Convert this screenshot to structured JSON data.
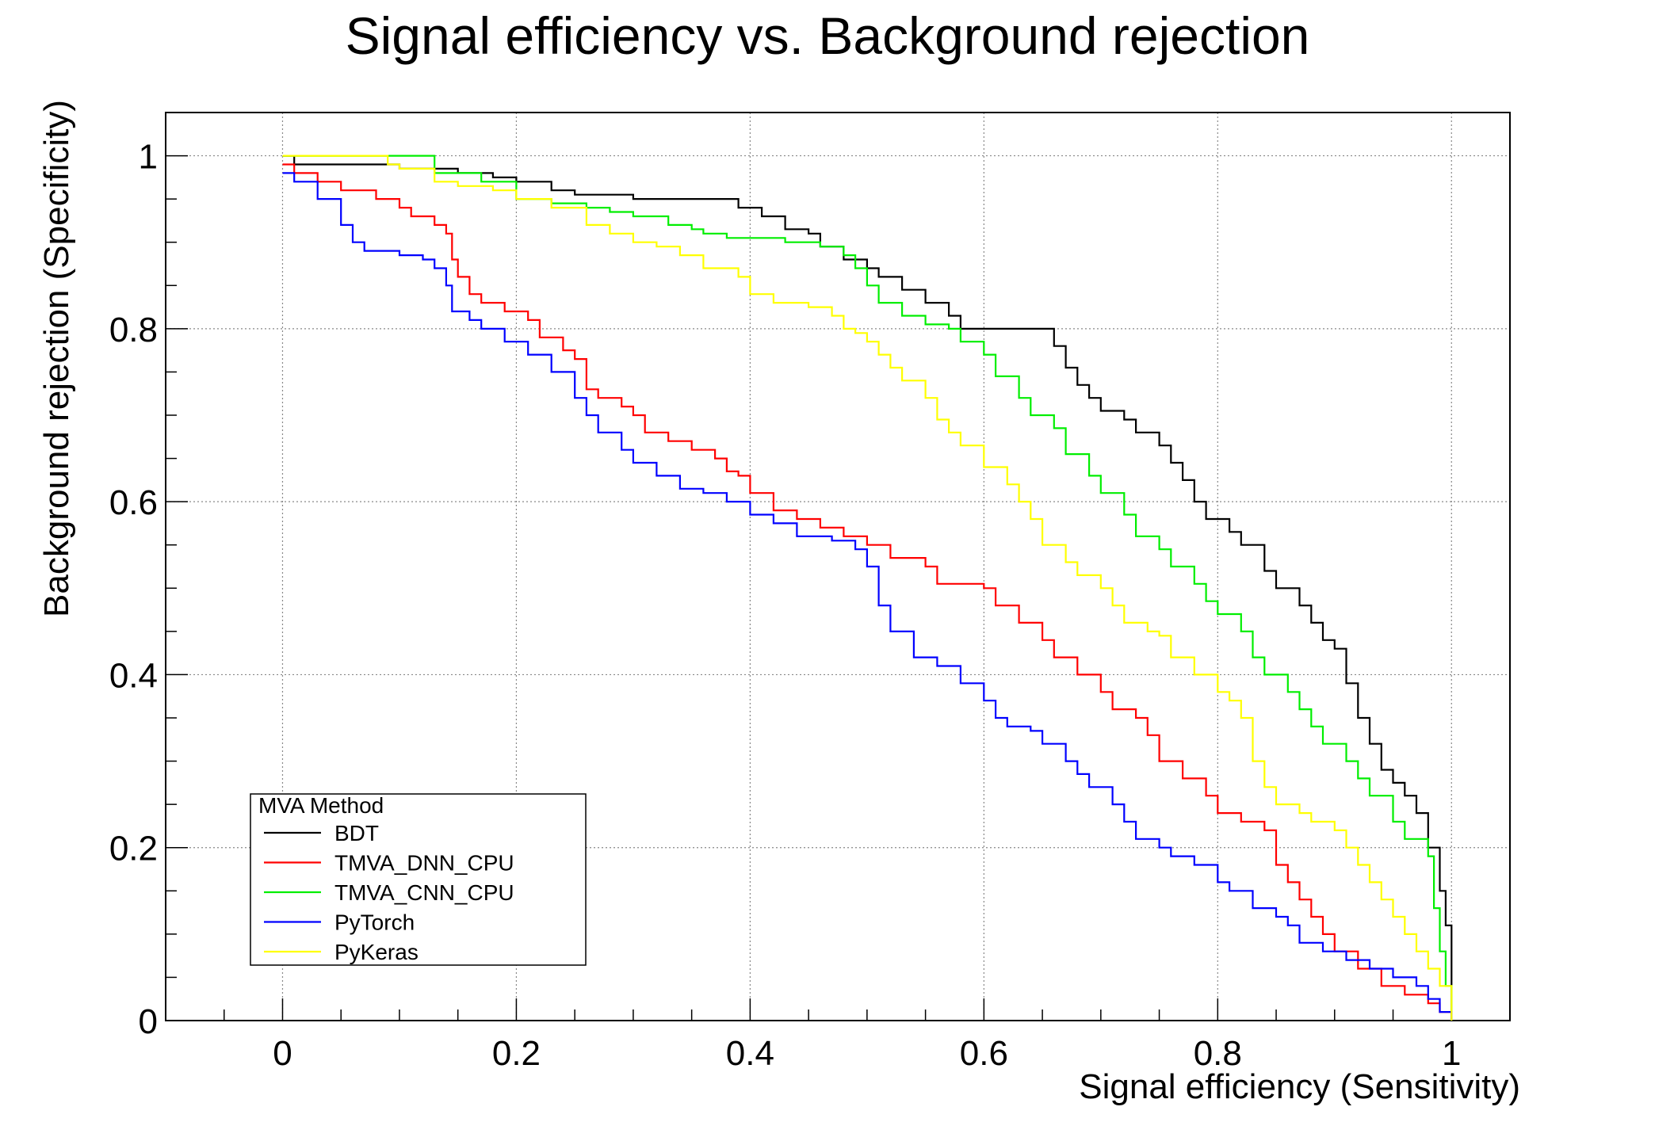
{
  "chart_data": {
    "type": "line",
    "title": "Signal efficiency vs. Background rejection",
    "xlabel": "Signal efficiency (Sensitivity)",
    "ylabel": "Background rejection (Specificity)",
    "xlim": [
      -0.1,
      1.05
    ],
    "ylim": [
      0,
      1.05
    ],
    "x_ticks": [
      {
        "v": 0,
        "label": "0"
      },
      {
        "v": 0.2,
        "label": "0.2"
      },
      {
        "v": 0.4,
        "label": "0.4"
      },
      {
        "v": 0.6,
        "label": "0.6"
      },
      {
        "v": 0.8,
        "label": "0.8"
      },
      {
        "v": 1,
        "label": "1"
      }
    ],
    "y_ticks": [
      {
        "v": 0,
        "label": "0"
      },
      {
        "v": 0.2,
        "label": "0.2"
      },
      {
        "v": 0.4,
        "label": "0.4"
      },
      {
        "v": 0.6,
        "label": "0.6"
      },
      {
        "v": 0.8,
        "label": "0.8"
      },
      {
        "v": 1,
        "label": "1"
      }
    ],
    "grid": true,
    "legend": {
      "title": "MVA Method",
      "position": "bottom-left"
    },
    "series": [
      {
        "name": "BDT",
        "color": "#000000",
        "points": [
          [
            0,
            1.0
          ],
          [
            0.01,
            0.99
          ],
          [
            0.09,
            0.99
          ],
          [
            0.1,
            0.985
          ],
          [
            0.15,
            0.98
          ],
          [
            0.18,
            0.975
          ],
          [
            0.2,
            0.97
          ],
          [
            0.23,
            0.96
          ],
          [
            0.25,
            0.955
          ],
          [
            0.3,
            0.95
          ],
          [
            0.37,
            0.95
          ],
          [
            0.39,
            0.94
          ],
          [
            0.41,
            0.93
          ],
          [
            0.43,
            0.915
          ],
          [
            0.45,
            0.91
          ],
          [
            0.46,
            0.895
          ],
          [
            0.48,
            0.88
          ],
          [
            0.5,
            0.87
          ],
          [
            0.51,
            0.86
          ],
          [
            0.53,
            0.845
          ],
          [
            0.55,
            0.83
          ],
          [
            0.57,
            0.815
          ],
          [
            0.58,
            0.8
          ],
          [
            0.65,
            0.8
          ],
          [
            0.66,
            0.78
          ],
          [
            0.67,
            0.755
          ],
          [
            0.68,
            0.735
          ],
          [
            0.69,
            0.72
          ],
          [
            0.7,
            0.705
          ],
          [
            0.72,
            0.695
          ],
          [
            0.73,
            0.68
          ],
          [
            0.75,
            0.665
          ],
          [
            0.76,
            0.645
          ],
          [
            0.77,
            0.625
          ],
          [
            0.78,
            0.6
          ],
          [
            0.79,
            0.58
          ],
          [
            0.81,
            0.565
          ],
          [
            0.82,
            0.55
          ],
          [
            0.84,
            0.52
          ],
          [
            0.85,
            0.5
          ],
          [
            0.87,
            0.48
          ],
          [
            0.88,
            0.46
          ],
          [
            0.89,
            0.44
          ],
          [
            0.9,
            0.43
          ],
          [
            0.91,
            0.39
          ],
          [
            0.92,
            0.35
          ],
          [
            0.93,
            0.32
          ],
          [
            0.94,
            0.29
          ],
          [
            0.95,
            0.275
          ],
          [
            0.96,
            0.26
          ],
          [
            0.97,
            0.24
          ],
          [
            0.98,
            0.2
          ],
          [
            0.99,
            0.15
          ],
          [
            0.995,
            0.11
          ],
          [
            1.0,
            0.0
          ]
        ]
      },
      {
        "name": "TMVA_DNN_CPU",
        "color": "#ff0000",
        "points": [
          [
            0,
            0.99
          ],
          [
            0.01,
            0.98
          ],
          [
            0.03,
            0.97
          ],
          [
            0.05,
            0.96
          ],
          [
            0.08,
            0.95
          ],
          [
            0.1,
            0.94
          ],
          [
            0.11,
            0.93
          ],
          [
            0.13,
            0.92
          ],
          [
            0.14,
            0.91
          ],
          [
            0.145,
            0.88
          ],
          [
            0.15,
            0.86
          ],
          [
            0.16,
            0.84
          ],
          [
            0.17,
            0.83
          ],
          [
            0.19,
            0.82
          ],
          [
            0.21,
            0.81
          ],
          [
            0.22,
            0.79
          ],
          [
            0.24,
            0.775
          ],
          [
            0.25,
            0.765
          ],
          [
            0.26,
            0.73
          ],
          [
            0.27,
            0.72
          ],
          [
            0.29,
            0.71
          ],
          [
            0.3,
            0.7
          ],
          [
            0.31,
            0.68
          ],
          [
            0.33,
            0.67
          ],
          [
            0.35,
            0.66
          ],
          [
            0.37,
            0.65
          ],
          [
            0.38,
            0.635
          ],
          [
            0.39,
            0.63
          ],
          [
            0.4,
            0.61
          ],
          [
            0.42,
            0.59
          ],
          [
            0.44,
            0.58
          ],
          [
            0.46,
            0.57
          ],
          [
            0.48,
            0.56
          ],
          [
            0.5,
            0.55
          ],
          [
            0.52,
            0.535
          ],
          [
            0.55,
            0.525
          ],
          [
            0.56,
            0.505
          ],
          [
            0.6,
            0.5
          ],
          [
            0.61,
            0.48
          ],
          [
            0.63,
            0.46
          ],
          [
            0.65,
            0.44
          ],
          [
            0.66,
            0.42
          ],
          [
            0.68,
            0.4
          ],
          [
            0.7,
            0.38
          ],
          [
            0.71,
            0.36
          ],
          [
            0.73,
            0.35
          ],
          [
            0.74,
            0.33
          ],
          [
            0.75,
            0.3
          ],
          [
            0.77,
            0.28
          ],
          [
            0.79,
            0.26
          ],
          [
            0.8,
            0.24
          ],
          [
            0.82,
            0.23
          ],
          [
            0.84,
            0.22
          ],
          [
            0.85,
            0.18
          ],
          [
            0.86,
            0.16
          ],
          [
            0.87,
            0.14
          ],
          [
            0.88,
            0.12
          ],
          [
            0.89,
            0.1
          ],
          [
            0.9,
            0.08
          ],
          [
            0.92,
            0.06
          ],
          [
            0.94,
            0.04
          ],
          [
            0.96,
            0.03
          ],
          [
            0.98,
            0.02
          ],
          [
            0.99,
            0.01
          ],
          [
            1.0,
            0.0
          ]
        ]
      },
      {
        "name": "TMVA_CNN_CPU",
        "color": "#00ee00",
        "points": [
          [
            0,
            1.0
          ],
          [
            0.12,
            1.0
          ],
          [
            0.13,
            0.98
          ],
          [
            0.17,
            0.97
          ],
          [
            0.2,
            0.95
          ],
          [
            0.23,
            0.945
          ],
          [
            0.26,
            0.94
          ],
          [
            0.28,
            0.935
          ],
          [
            0.3,
            0.93
          ],
          [
            0.33,
            0.92
          ],
          [
            0.35,
            0.915
          ],
          [
            0.36,
            0.91
          ],
          [
            0.38,
            0.905
          ],
          [
            0.43,
            0.9
          ],
          [
            0.46,
            0.895
          ],
          [
            0.48,
            0.885
          ],
          [
            0.49,
            0.87
          ],
          [
            0.5,
            0.85
          ],
          [
            0.51,
            0.83
          ],
          [
            0.53,
            0.815
          ],
          [
            0.55,
            0.805
          ],
          [
            0.57,
            0.8
          ],
          [
            0.58,
            0.785
          ],
          [
            0.6,
            0.77
          ],
          [
            0.61,
            0.745
          ],
          [
            0.63,
            0.72
          ],
          [
            0.64,
            0.7
          ],
          [
            0.66,
            0.685
          ],
          [
            0.67,
            0.655
          ],
          [
            0.69,
            0.63
          ],
          [
            0.7,
            0.61
          ],
          [
            0.72,
            0.585
          ],
          [
            0.73,
            0.56
          ],
          [
            0.75,
            0.545
          ],
          [
            0.76,
            0.525
          ],
          [
            0.78,
            0.505
          ],
          [
            0.79,
            0.485
          ],
          [
            0.8,
            0.47
          ],
          [
            0.82,
            0.45
          ],
          [
            0.83,
            0.42
          ],
          [
            0.84,
            0.4
          ],
          [
            0.86,
            0.38
          ],
          [
            0.87,
            0.36
          ],
          [
            0.88,
            0.34
          ],
          [
            0.89,
            0.32
          ],
          [
            0.91,
            0.3
          ],
          [
            0.92,
            0.28
          ],
          [
            0.93,
            0.26
          ],
          [
            0.95,
            0.23
          ],
          [
            0.96,
            0.21
          ],
          [
            0.98,
            0.19
          ],
          [
            0.985,
            0.13
          ],
          [
            0.99,
            0.08
          ],
          [
            0.995,
            0.04
          ],
          [
            1.0,
            0.0
          ]
        ]
      },
      {
        "name": "PyTorch",
        "color": "#0000ff",
        "points": [
          [
            0,
            0.98
          ],
          [
            0.01,
            0.97
          ],
          [
            0.03,
            0.95
          ],
          [
            0.05,
            0.92
          ],
          [
            0.06,
            0.9
          ],
          [
            0.07,
            0.89
          ],
          [
            0.1,
            0.885
          ],
          [
            0.12,
            0.88
          ],
          [
            0.13,
            0.87
          ],
          [
            0.14,
            0.85
          ],
          [
            0.145,
            0.82
          ],
          [
            0.16,
            0.81
          ],
          [
            0.17,
            0.8
          ],
          [
            0.19,
            0.785
          ],
          [
            0.21,
            0.77
          ],
          [
            0.23,
            0.75
          ],
          [
            0.25,
            0.72
          ],
          [
            0.26,
            0.7
          ],
          [
            0.27,
            0.68
          ],
          [
            0.29,
            0.66
          ],
          [
            0.3,
            0.645
          ],
          [
            0.32,
            0.63
          ],
          [
            0.34,
            0.615
          ],
          [
            0.36,
            0.61
          ],
          [
            0.38,
            0.6
          ],
          [
            0.4,
            0.585
          ],
          [
            0.42,
            0.575
          ],
          [
            0.44,
            0.56
          ],
          [
            0.47,
            0.555
          ],
          [
            0.49,
            0.545
          ],
          [
            0.5,
            0.525
          ],
          [
            0.51,
            0.48
          ],
          [
            0.52,
            0.45
          ],
          [
            0.54,
            0.42
          ],
          [
            0.56,
            0.41
          ],
          [
            0.58,
            0.39
          ],
          [
            0.6,
            0.37
          ],
          [
            0.61,
            0.35
          ],
          [
            0.62,
            0.34
          ],
          [
            0.64,
            0.335
          ],
          [
            0.65,
            0.32
          ],
          [
            0.67,
            0.3
          ],
          [
            0.68,
            0.285
          ],
          [
            0.69,
            0.27
          ],
          [
            0.71,
            0.25
          ],
          [
            0.72,
            0.23
          ],
          [
            0.73,
            0.21
          ],
          [
            0.75,
            0.2
          ],
          [
            0.76,
            0.19
          ],
          [
            0.78,
            0.18
          ],
          [
            0.8,
            0.16
          ],
          [
            0.81,
            0.15
          ],
          [
            0.83,
            0.13
          ],
          [
            0.85,
            0.12
          ],
          [
            0.86,
            0.11
          ],
          [
            0.87,
            0.09
          ],
          [
            0.89,
            0.08
          ],
          [
            0.91,
            0.07
          ],
          [
            0.93,
            0.06
          ],
          [
            0.95,
            0.05
          ],
          [
            0.97,
            0.04
          ],
          [
            0.98,
            0.025
          ],
          [
            0.99,
            0.01
          ],
          [
            1.0,
            0.0
          ]
        ]
      },
      {
        "name": "PyKeras",
        "color": "#ffff00",
        "points": [
          [
            0,
            1.0
          ],
          [
            0.08,
            1.0
          ],
          [
            0.09,
            0.99
          ],
          [
            0.1,
            0.985
          ],
          [
            0.13,
            0.97
          ],
          [
            0.15,
            0.965
          ],
          [
            0.18,
            0.96
          ],
          [
            0.2,
            0.95
          ],
          [
            0.23,
            0.94
          ],
          [
            0.26,
            0.92
          ],
          [
            0.28,
            0.91
          ],
          [
            0.3,
            0.9
          ],
          [
            0.32,
            0.895
          ],
          [
            0.34,
            0.885
          ],
          [
            0.36,
            0.87
          ],
          [
            0.39,
            0.86
          ],
          [
            0.4,
            0.84
          ],
          [
            0.42,
            0.83
          ],
          [
            0.45,
            0.825
          ],
          [
            0.47,
            0.815
          ],
          [
            0.48,
            0.8
          ],
          [
            0.49,
            0.795
          ],
          [
            0.5,
            0.785
          ],
          [
            0.51,
            0.77
          ],
          [
            0.52,
            0.755
          ],
          [
            0.53,
            0.74
          ],
          [
            0.55,
            0.72
          ],
          [
            0.56,
            0.695
          ],
          [
            0.57,
            0.68
          ],
          [
            0.58,
            0.665
          ],
          [
            0.6,
            0.64
          ],
          [
            0.62,
            0.62
          ],
          [
            0.63,
            0.6
          ],
          [
            0.64,
            0.58
          ],
          [
            0.65,
            0.55
          ],
          [
            0.67,
            0.53
          ],
          [
            0.68,
            0.515
          ],
          [
            0.7,
            0.5
          ],
          [
            0.71,
            0.48
          ],
          [
            0.72,
            0.46
          ],
          [
            0.74,
            0.45
          ],
          [
            0.75,
            0.445
          ],
          [
            0.76,
            0.42
          ],
          [
            0.78,
            0.4
          ],
          [
            0.8,
            0.38
          ],
          [
            0.81,
            0.37
          ],
          [
            0.82,
            0.35
          ],
          [
            0.83,
            0.3
          ],
          [
            0.84,
            0.27
          ],
          [
            0.85,
            0.25
          ],
          [
            0.87,
            0.24
          ],
          [
            0.88,
            0.23
          ],
          [
            0.9,
            0.22
          ],
          [
            0.91,
            0.2
          ],
          [
            0.92,
            0.18
          ],
          [
            0.93,
            0.16
          ],
          [
            0.94,
            0.14
          ],
          [
            0.95,
            0.12
          ],
          [
            0.96,
            0.1
          ],
          [
            0.97,
            0.08
          ],
          [
            0.98,
            0.06
          ],
          [
            0.99,
            0.04
          ],
          [
            1.0,
            0.0
          ]
        ]
      }
    ]
  }
}
